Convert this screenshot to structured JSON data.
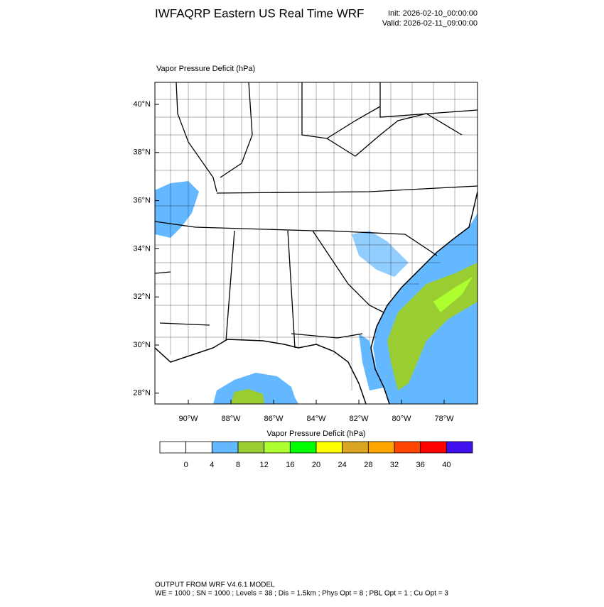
{
  "header": {
    "title": "IWFAQRP Eastern US Real Time WRF",
    "init": "Init: 2026-02-10_00:00:00",
    "valid": "Valid: 2026-02-11_09:00:00"
  },
  "map": {
    "label": "Vapor Pressure Deficit   (hPa)",
    "lat_labels": [
      "40°N",
      "38°N",
      "36°N",
      "34°N",
      "32°N",
      "30°N",
      "28°N"
    ],
    "lon_labels": [
      "90°W",
      "88°W",
      "86°W",
      "84°W",
      "82°W",
      "80°W",
      "78°W"
    ]
  },
  "colorbar": {
    "title": "Vapor Pressure Deficit  (hPa)",
    "colors": [
      "#ffffff",
      "#ffffff",
      "#63b8ff",
      "#9acd32",
      "#adff2f",
      "#00ff00",
      "#ffff00",
      "#daa520",
      "#ffa500",
      "#ff4500",
      "#ff0000",
      "#4010ee"
    ],
    "labels": [
      0,
      4,
      8,
      12,
      16,
      20,
      24,
      28,
      32,
      36,
      40
    ]
  },
  "footer": [
    "OUTPUT FROM WRF V4.6.1 MODEL",
    "WE = 1000 ; SN = 1000 ; Levels = 38 ; Dis = 1.5km ; Phys Opt = 8 ; PBL Opt = 1 ; Cu Opt = 3"
  ]
}
